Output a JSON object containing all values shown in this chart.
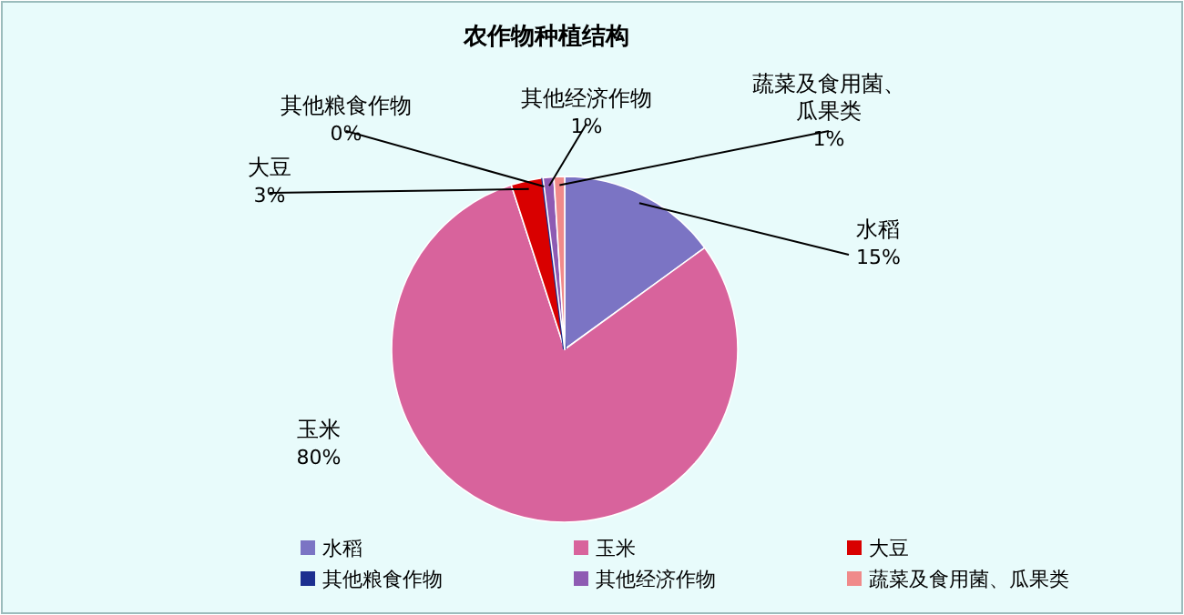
{
  "chart_data": {
    "type": "pie",
    "title": "农作物种植结构",
    "categories": [
      "水稻",
      "玉米",
      "大豆",
      "其他粮食作物",
      "其他经济作物",
      "蔬菜及食用菌、瓜果类"
    ],
    "values": [
      15,
      80,
      3,
      0,
      1,
      1
    ],
    "colors": [
      "#7b74c4",
      "#d8639c",
      "#d90000",
      "#1c2f90",
      "#8e5bb3",
      "#f08a8a"
    ],
    "value_labels": [
      "15%",
      "80%",
      "3%",
      "0%",
      "1%",
      "1%"
    ],
    "legend": "bottom"
  }
}
